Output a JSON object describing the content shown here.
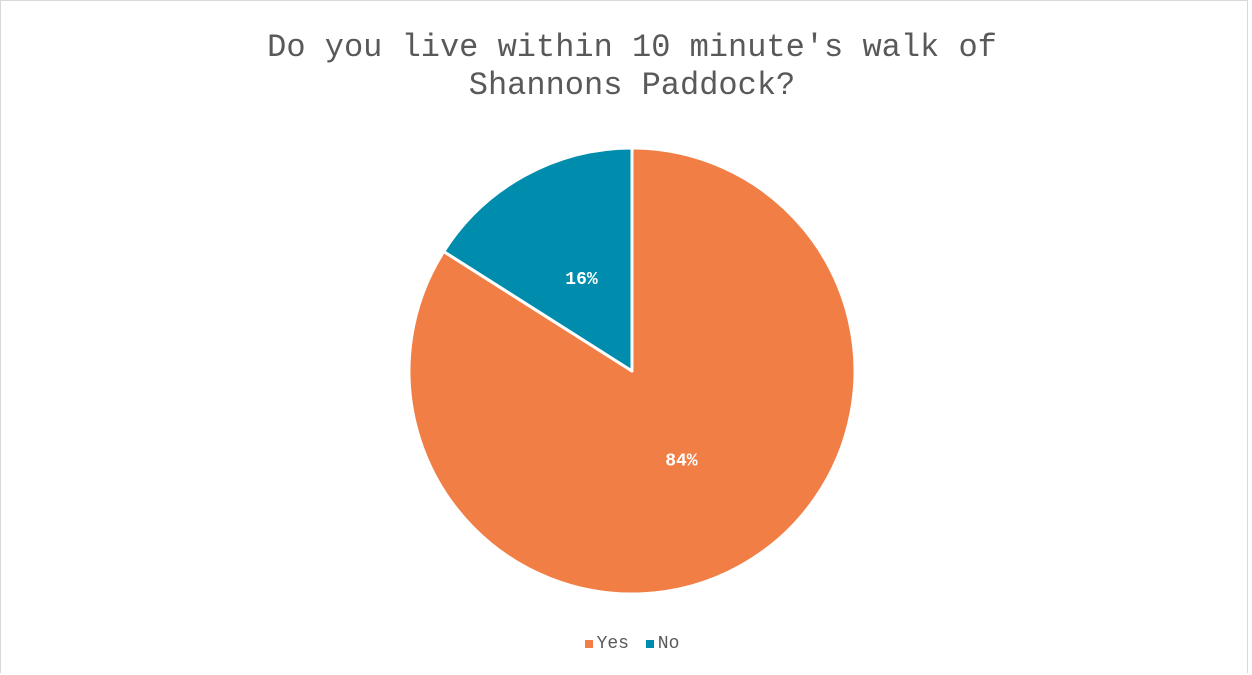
{
  "chart_data": {
    "type": "pie",
    "title_lines": [
      "Do you live within 10 minute's walk of",
      "Shannons Paddock?"
    ],
    "categories": [
      "Yes",
      "No"
    ],
    "values": [
      84,
      16
    ],
    "data_labels": [
      "84%",
      "16%"
    ],
    "colors": [
      "#F07E45",
      "#008DAD"
    ],
    "legend_position": "bottom",
    "start_angle": "12 o'clock",
    "direction": "clockwise"
  }
}
